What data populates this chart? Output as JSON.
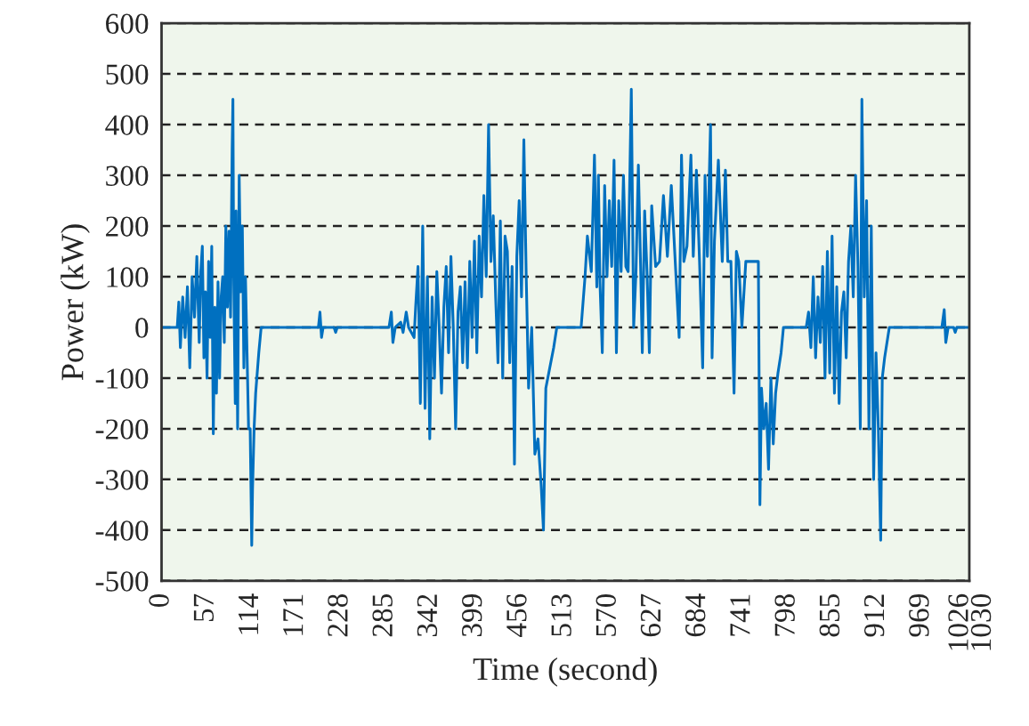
{
  "chart_data": {
    "type": "line",
    "xlabel": "Time (second)",
    "ylabel": "Power (kW)",
    "xlim": [
      0,
      1030
    ],
    "ylim": [
      -500,
      600
    ],
    "xticks": [
      0,
      57,
      114,
      171,
      228,
      285,
      342,
      399,
      456,
      513,
      570,
      627,
      684,
      741,
      798,
      855,
      912,
      969,
      1026,
      1030
    ],
    "yticks": [
      -500,
      -400,
      -300,
      -200,
      -100,
      0,
      100,
      200,
      300,
      400,
      500,
      600
    ],
    "grid": "y",
    "line_style": "solid",
    "marker": "none",
    "series": [
      {
        "color": "#0070c0",
        "x": [
          0,
          20,
          22,
          24,
          27,
          30,
          33,
          36,
          39,
          42,
          45,
          48,
          50,
          52,
          54,
          56,
          58,
          60,
          62,
          64,
          66,
          68,
          70,
          72,
          74,
          76,
          78,
          80,
          82,
          84,
          86,
          88,
          90,
          91,
          92,
          94,
          95,
          97,
          99,
          101,
          103,
          105,
          107,
          109,
          111,
          113,
          115,
          116,
          118,
          120,
          124,
          127,
          200,
          202,
          204,
          206,
          220,
          222,
          224,
          290,
          293,
          295,
          298,
          305,
          308,
          312,
          315,
          322,
          324,
          327,
          330,
          333,
          336,
          339,
          342,
          345,
          348,
          351,
          354,
          357,
          360,
          363,
          366,
          369,
          372,
          375,
          378,
          381,
          384,
          387,
          390,
          393,
          396,
          399,
          402,
          405,
          408,
          411,
          414,
          417,
          420,
          423,
          426,
          429,
          432,
          435,
          438,
          441,
          444,
          447,
          450,
          453,
          456,
          459,
          462,
          465,
          468,
          472,
          476,
          480,
          484,
          487,
          490,
          495,
          500,
          504,
          535,
          540,
          543,
          548,
          552,
          555,
          557,
          559,
          562,
          565,
          568,
          571,
          574,
          577,
          580,
          583,
          586,
          589,
          592,
          595,
          599,
          602,
          605,
          608,
          611,
          613,
          616,
          619,
          622,
          625,
          630,
          635,
          640,
          645,
          650,
          655,
          660,
          663,
          666,
          670,
          675,
          678,
          682,
          686,
          690,
          693,
          696,
          700,
          702,
          705,
          710,
          715,
          719,
          722,
          726,
          730,
          733,
          736,
          740,
          745,
          748,
          752,
          757,
          761,
          763,
          765,
          768,
          771,
          774,
          777,
          780,
          783,
          786,
          790,
          793,
          822,
          825,
          828,
          831,
          834,
          837,
          840,
          843,
          846,
          849,
          852,
          855,
          858,
          861,
          864,
          867,
          870,
          873,
          876,
          879,
          882,
          885,
          888,
          891,
          893,
          896,
          899,
          902,
          905,
          908,
          911,
          914,
          917,
          919,
          922,
          925,
          928,
          995,
          998,
          1000,
          1003,
          1010,
          1012,
          1014,
          1030
        ],
        "values": [
          0,
          0,
          50,
          -40,
          60,
          -20,
          80,
          -80,
          100,
          20,
          140,
          -30,
          110,
          160,
          -60,
          70,
          -100,
          130,
          -20,
          160,
          -210,
          40,
          -130,
          90,
          -100,
          60,
          100,
          -30,
          200,
          40,
          190,
          20,
          350,
          450,
          100,
          -150,
          230,
          -200,
          300,
          70,
          200,
          -80,
          100,
          -50,
          -200,
          -200,
          -430,
          -320,
          -200,
          -130,
          -50,
          0,
          0,
          30,
          -20,
          0,
          0,
          -10,
          0,
          0,
          30,
          -30,
          0,
          10,
          -10,
          30,
          0,
          -20,
          40,
          120,
          -150,
          200,
          -160,
          100,
          -220,
          60,
          -100,
          110,
          0,
          -130,
          40,
          120,
          -50,
          140,
          0,
          -200,
          30,
          80,
          -70,
          90,
          -80,
          130,
          -20,
          170,
          -50,
          180,
          60,
          260,
          100,
          400,
          130,
          220,
          60,
          -70,
          210,
          -100,
          180,
          150,
          -70,
          120,
          -270,
          140,
          250,
          60,
          370,
          100,
          -120,
          0,
          -250,
          -220,
          -310,
          -400,
          -120,
          -80,
          -40,
          0,
          0,
          100,
          180,
          110,
          340,
          80,
          300,
          90,
          -50,
          280,
          100,
          250,
          120,
          330,
          -50,
          250,
          110,
          300,
          120,
          110,
          470,
          0,
          110,
          320,
          110,
          -50,
          230,
          110,
          -50,
          240,
          120,
          130,
          260,
          140,
          280,
          130,
          -20,
          340,
          130,
          160,
          340,
          140,
          310,
          130,
          -80,
          300,
          140,
          400,
          -60,
          170,
          330,
          130,
          310,
          130,
          130,
          -130,
          150,
          130,
          0,
          130,
          130,
          130,
          130,
          130,
          -350,
          -120,
          -200,
          -150,
          -280,
          -100,
          -230,
          -130,
          -90,
          -50,
          0,
          0,
          30,
          -40,
          100,
          -60,
          60,
          -30,
          120,
          -100,
          150,
          -90,
          180,
          -130,
          80,
          -150,
          30,
          70,
          -60,
          130,
          200,
          60,
          300,
          120,
          -200,
          450,
          60,
          250,
          -200,
          200,
          -300,
          -50,
          -200,
          -420,
          -100,
          -60,
          -30,
          0,
          0,
          35,
          -30,
          0,
          0,
          -10,
          0,
          0
        ]
      }
    ]
  }
}
